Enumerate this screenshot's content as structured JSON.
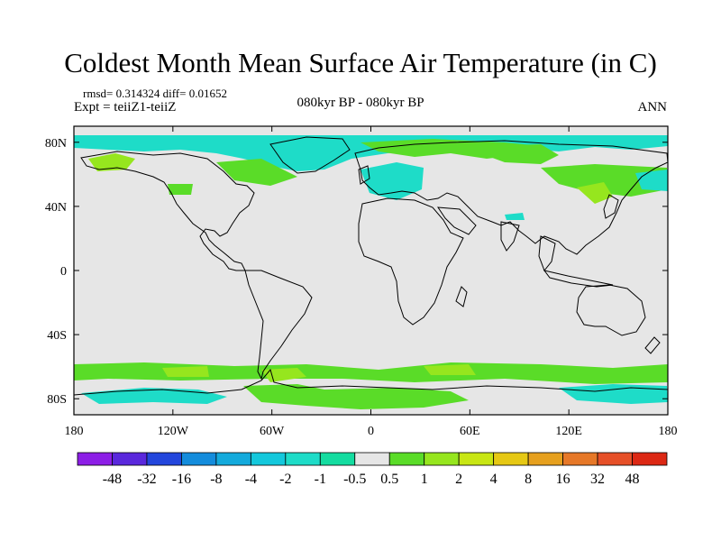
{
  "figure": {
    "title": "Coldest Month Mean Surface Air Temperature (in C)",
    "stats": "rmsd= 0.314324 diff= 0.01652",
    "experiment": "Expt = teiiZ1-teiiZ",
    "period": "080kyr BP - 080kyr BP",
    "season": "ANN"
  },
  "map": {
    "background_color": "#e6e6e6",
    "lat_range": [
      -90,
      90
    ],
    "lon_range": [
      -180,
      180
    ],
    "lat_ticks": [
      {
        "value": 80,
        "label": "80N"
      },
      {
        "value": 40,
        "label": "40N"
      },
      {
        "value": 0,
        "label": "0"
      },
      {
        "value": -40,
        "label": "40S"
      },
      {
        "value": -80,
        "label": "80S"
      }
    ],
    "lon_ticks": [
      {
        "value": -180,
        "label": "180"
      },
      {
        "value": -120,
        "label": "120W"
      },
      {
        "value": -60,
        "label": "60W"
      },
      {
        "value": 0,
        "label": "0"
      },
      {
        "value": 60,
        "label": "60E"
      },
      {
        "value": 120,
        "label": "120E"
      },
      {
        "value": 180,
        "label": "180"
      }
    ]
  },
  "colorbar": {
    "colors": [
      "#8c1ee6",
      "#5a28dc",
      "#2346dc",
      "#148cdc",
      "#14aadc",
      "#14c8dc",
      "#1edcc8",
      "#14dca0",
      "#e6e6e6",
      "#5adc28",
      "#96e61e",
      "#c8e614",
      "#e6c814",
      "#e6a01e",
      "#e67828",
      "#e65028",
      "#dc2814"
    ],
    "labels": [
      "-48",
      "-32",
      "-16",
      "-8",
      "-4",
      "-2",
      "-1",
      "-0.5",
      "0.5",
      "1",
      "2",
      "4",
      "8",
      "16",
      "32",
      "48"
    ]
  }
}
